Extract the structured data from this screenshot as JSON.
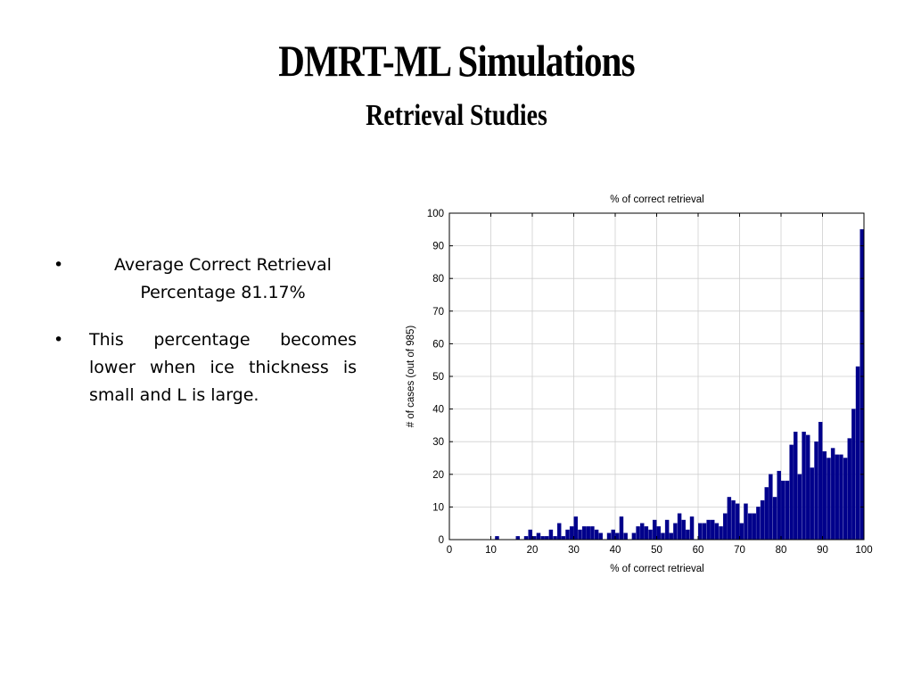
{
  "slide": {
    "title": "DMRT-ML Simulations",
    "subtitle": "Retrieval Studies"
  },
  "bullets": [
    {
      "marker": "•",
      "text": "Average Correct Retrieval Percentage 81.17%"
    },
    {
      "marker": "•",
      "text": "This percentage becomes lower when ice thickness is small and L is large."
    }
  ],
  "colors": {
    "bar": "#00008b",
    "grid": "#cfcfcf",
    "axis": "#000000"
  },
  "chart_data": {
    "type": "bar",
    "title": "% of correct retrieval",
    "xlabel": "% of correct retrieval",
    "ylabel": "# of cases (out of 985)",
    "xlim": [
      0,
      100
    ],
    "ylim": [
      0,
      100
    ],
    "xticks": [
      0,
      10,
      20,
      30,
      40,
      50,
      60,
      70,
      80,
      90,
      100
    ],
    "yticks": [
      0,
      10,
      20,
      30,
      40,
      50,
      60,
      70,
      80,
      90,
      100
    ],
    "grid": true,
    "x": [
      1,
      2,
      3,
      4,
      5,
      6,
      7,
      8,
      9,
      10,
      11,
      12,
      13,
      14,
      15,
      16,
      17,
      18,
      19,
      20,
      21,
      22,
      23,
      24,
      25,
      26,
      27,
      28,
      29,
      30,
      31,
      32,
      33,
      34,
      35,
      36,
      37,
      38,
      39,
      40,
      41,
      42,
      43,
      44,
      45,
      46,
      47,
      48,
      49,
      50,
      51,
      52,
      53,
      54,
      55,
      56,
      57,
      58,
      59,
      60,
      61,
      62,
      63,
      64,
      65,
      66,
      67,
      68,
      69,
      70,
      71,
      72,
      73,
      74,
      75,
      76,
      77,
      78,
      79,
      80,
      81,
      82,
      83,
      84,
      85,
      86,
      87,
      88,
      89,
      90,
      91,
      92,
      93,
      94,
      95,
      96,
      97,
      98,
      99,
      100
    ],
    "values": [
      0,
      0,
      0,
      0,
      0,
      0,
      0,
      0,
      0,
      0,
      0,
      1,
      0,
      0,
      0,
      0,
      1,
      0,
      1,
      3,
      1,
      2,
      1,
      1,
      3,
      1,
      5,
      1,
      3,
      4,
      7,
      3,
      4,
      4,
      4,
      3,
      2,
      0,
      2,
      3,
      2,
      7,
      2,
      0,
      2,
      4,
      5,
      4,
      3,
      6,
      4,
      2,
      6,
      2,
      5,
      8,
      6,
      3,
      7,
      0,
      5,
      5,
      6,
      6,
      5,
      4,
      8,
      13,
      12,
      11,
      5,
      11,
      8,
      8,
      10,
      12,
      16,
      20,
      13,
      21,
      18,
      18,
      29,
      33,
      20,
      33,
      32,
      22,
      30,
      36,
      27,
      25,
      28,
      26,
      26,
      25,
      31,
      40,
      53,
      95
    ]
  }
}
